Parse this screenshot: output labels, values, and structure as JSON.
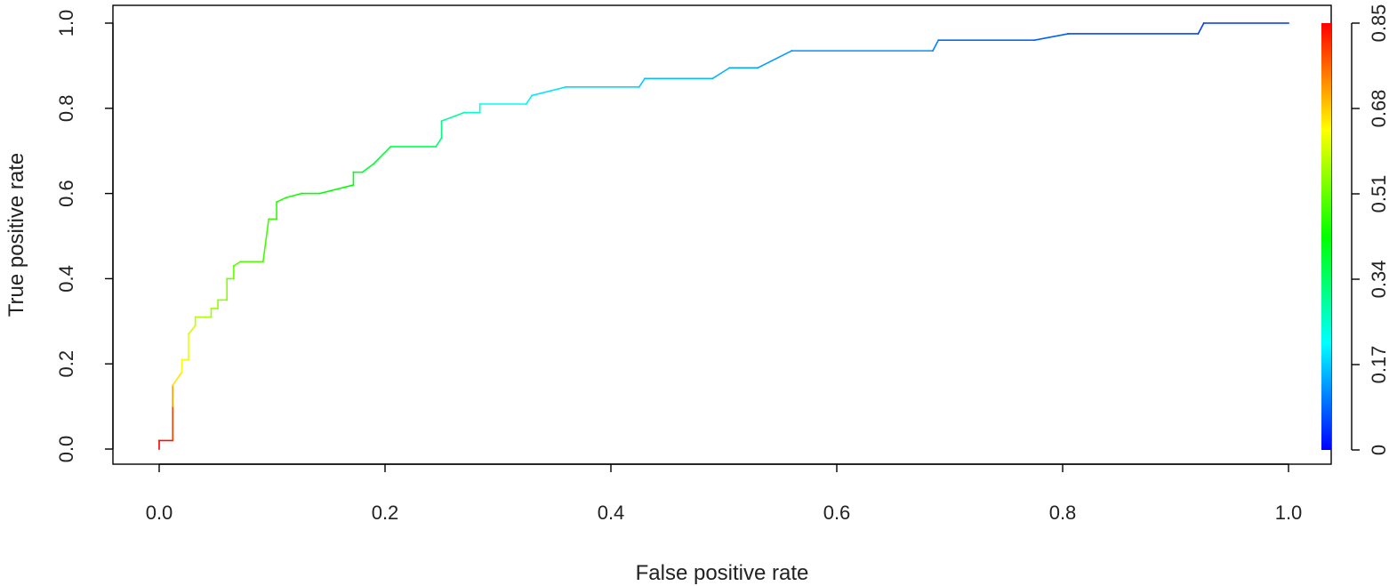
{
  "chart_data": {
    "type": "line",
    "title": "",
    "xlabel": "False positive rate",
    "ylabel": "True positive rate",
    "xlim": [
      0,
      1
    ],
    "ylim": [
      0,
      1
    ],
    "grid": false,
    "legend": "none",
    "x_ticks": [
      "0.0",
      "0.2",
      "0.4",
      "0.6",
      "0.8",
      "1.0"
    ],
    "y_ticks": [
      "0.0",
      "0.2",
      "0.4",
      "0.6",
      "0.8",
      "1.0"
    ],
    "colorbar": {
      "min": 0,
      "max": 0.85,
      "labels": [
        "0",
        "0.17",
        "0.34",
        "0.51",
        "0.68",
        "0.85"
      ],
      "colors": [
        "#0000ff",
        "#00ffff",
        "#00ff00",
        "#ffff00",
        "#ff0000"
      ]
    },
    "series": [
      {
        "points": [
          [
            0.0,
            0.0
          ],
          [
            0.0,
            0.02
          ],
          [
            0.012,
            0.02
          ],
          [
            0.012,
            0.1
          ],
          [
            0.012,
            0.15
          ],
          [
            0.02,
            0.18
          ],
          [
            0.02,
            0.21
          ],
          [
            0.026,
            0.21
          ],
          [
            0.026,
            0.27
          ],
          [
            0.032,
            0.29
          ],
          [
            0.032,
            0.31
          ],
          [
            0.046,
            0.31
          ],
          [
            0.046,
            0.33
          ],
          [
            0.052,
            0.33
          ],
          [
            0.052,
            0.35
          ],
          [
            0.06,
            0.35
          ],
          [
            0.06,
            0.4
          ],
          [
            0.066,
            0.4
          ],
          [
            0.066,
            0.43
          ],
          [
            0.072,
            0.44
          ],
          [
            0.092,
            0.44
          ],
          [
            0.097,
            0.54
          ],
          [
            0.104,
            0.54
          ],
          [
            0.104,
            0.58
          ],
          [
            0.112,
            0.59
          ],
          [
            0.126,
            0.6
          ],
          [
            0.142,
            0.6
          ],
          [
            0.172,
            0.62
          ],
          [
            0.172,
            0.65
          ],
          [
            0.18,
            0.65
          ],
          [
            0.19,
            0.67
          ],
          [
            0.205,
            0.71
          ],
          [
            0.245,
            0.71
          ],
          [
            0.25,
            0.73
          ],
          [
            0.25,
            0.77
          ],
          [
            0.27,
            0.79
          ],
          [
            0.284,
            0.79
          ],
          [
            0.284,
            0.81
          ],
          [
            0.325,
            0.81
          ],
          [
            0.33,
            0.83
          ],
          [
            0.36,
            0.85
          ],
          [
            0.425,
            0.85
          ],
          [
            0.43,
            0.87
          ],
          [
            0.49,
            0.87
          ],
          [
            0.505,
            0.895
          ],
          [
            0.53,
            0.895
          ],
          [
            0.56,
            0.935
          ],
          [
            0.685,
            0.935
          ],
          [
            0.69,
            0.96
          ],
          [
            0.775,
            0.96
          ],
          [
            0.805,
            0.975
          ],
          [
            0.92,
            0.975
          ],
          [
            0.925,
            1.0
          ],
          [
            1.0,
            1.0
          ]
        ],
        "cutoffs": [
          0.85,
          0.84,
          0.8,
          0.72,
          0.66,
          0.64,
          0.63,
          0.62,
          0.6,
          0.58,
          0.57,
          0.56,
          0.55,
          0.55,
          0.54,
          0.54,
          0.52,
          0.51,
          0.5,
          0.49,
          0.48,
          0.47,
          0.46,
          0.45,
          0.44,
          0.43,
          0.42,
          0.41,
          0.4,
          0.39,
          0.38,
          0.36,
          0.34,
          0.32,
          0.3,
          0.26,
          0.24,
          0.22,
          0.2,
          0.19,
          0.18,
          0.17,
          0.16,
          0.15,
          0.14,
          0.13,
          0.12,
          0.11,
          0.09,
          0.08,
          0.06,
          0.05,
          0.04,
          0.03
        ]
      }
    ]
  }
}
